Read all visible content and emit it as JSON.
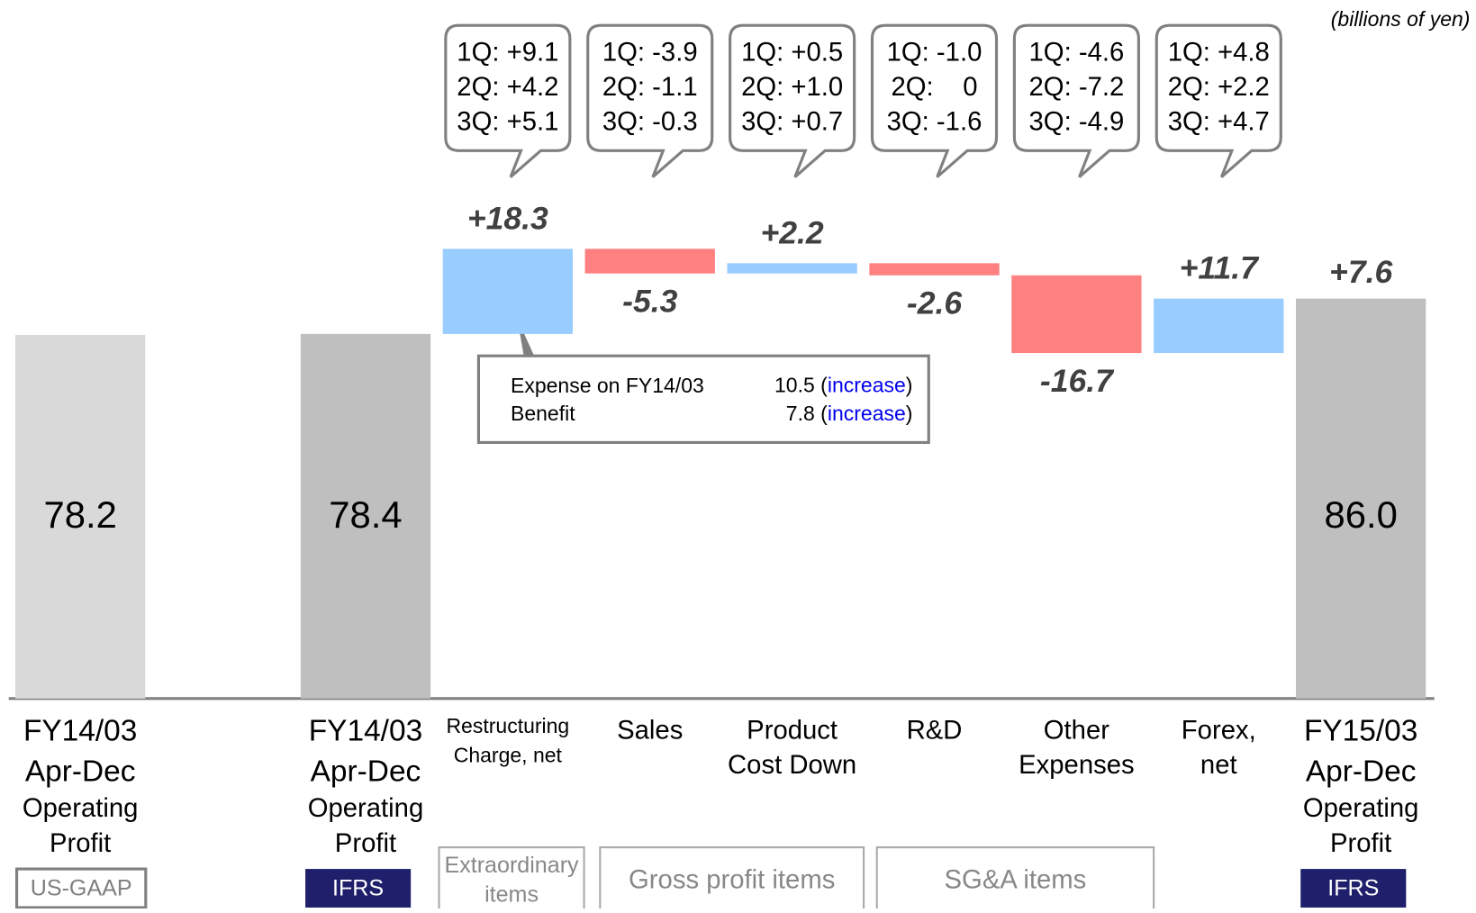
{
  "chart_data": {
    "type": "waterfall",
    "unit_note": "(billions of yen)",
    "categories": [
      [
        "FY14/03",
        "Apr-Dec",
        "Operating",
        "Profit"
      ],
      [
        "FY14/03",
        "Apr-Dec",
        "Operating",
        "Profit"
      ],
      [
        "Restructuring",
        "Charge, net"
      ],
      [
        "Sales"
      ],
      [
        "Product",
        "Cost Down"
      ],
      [
        "R&D"
      ],
      [
        "Other",
        "Expenses"
      ],
      [
        "Forex,",
        "net"
      ],
      [
        "FY15/03",
        "Apr-Dec",
        "Operating",
        "Profit"
      ]
    ],
    "measure": [
      "absolute",
      "absolute",
      "relative",
      "relative",
      "relative",
      "relative",
      "relative",
      "relative",
      "absolute"
    ],
    "values": [
      78.2,
      78.4,
      18.3,
      -5.3,
      2.2,
      -2.6,
      -16.7,
      11.7,
      86.0
    ],
    "value_labels": [
      "78.2",
      "78.4",
      "+18.3",
      "-5.3",
      "+2.2",
      "-2.6",
      "-16.7",
      "+11.7",
      "86.0"
    ],
    "colors": [
      "#d9d9d9",
      "#bfbfbf",
      "#99ccff",
      "#ff8080",
      "#99ccff",
      "#ff8080",
      "#ff8080",
      "#99ccff",
      "#bfbfbf"
    ],
    "change": {
      "value": 7.6,
      "label": "+7.6"
    },
    "ylim": [
      0,
      150
    ],
    "standards": [
      "US-GAAP",
      "IFRS",
      null,
      null,
      null,
      null,
      null,
      null,
      "IFRS"
    ],
    "quarters": [
      null,
      null,
      [
        "1Q: +9.1",
        "2Q: +4.2",
        "3Q: +5.1"
      ],
      [
        "1Q: -3.9",
        "2Q: -1.1",
        "3Q: -0.3"
      ],
      [
        "1Q: +0.5",
        "2Q: +1.0",
        "3Q: +0.7"
      ],
      [
        "1Q: -1.0",
        "2Q:    0",
        "3Q: -1.6"
      ],
      [
        "1Q: -4.6",
        "2Q: -7.2",
        "3Q: -4.9"
      ],
      [
        "1Q: +4.8",
        "2Q: +2.2",
        "3Q: +4.7"
      ],
      null
    ],
    "groups": [
      [
        "Extraordinary",
        "items"
      ],
      [
        "Gross profit items"
      ],
      [
        "SG&A items"
      ]
    ],
    "note_box": [
      [
        "Expense on FY14/03",
        "10.5 (",
        "increase",
        ")"
      ],
      [
        "Benefit",
        "7.8 (",
        "increase",
        ")"
      ]
    ]
  }
}
